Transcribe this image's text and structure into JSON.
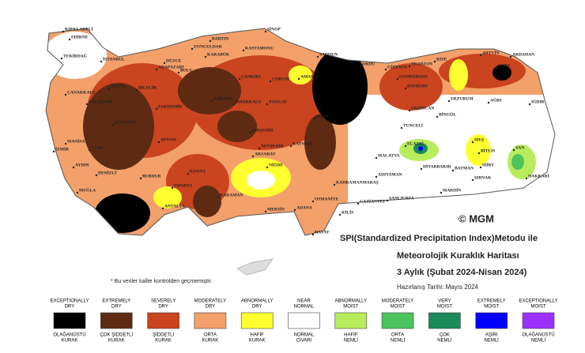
{
  "map": {
    "cities": [
      "KIRKLARELİ",
      "EDİRNE",
      "TEKİRDAĞ",
      "İSTANBUL",
      "ÇANAKKALE",
      "BALIKESİR",
      "BARTIN",
      "ZONGULDAK",
      "KARABÜK",
      "KASTAMONU",
      "SİNOP",
      "SAMSUN",
      "ORDU",
      "GİRESUN",
      "TRABZON",
      "RİZE",
      "ARTVİN",
      "ARDAHAN",
      "KARS",
      "IĞDIR",
      "AĞRI",
      "ERZURUM",
      "BAYBURT",
      "GÜMÜŞHANE",
      "ERZİNCAN",
      "TUNCELİ",
      "BİNGÖL",
      "MUŞ",
      "BİTLİS",
      "VAN",
      "SİİRT",
      "ŞIRNAK",
      "HAKKARİ",
      "BATMAN",
      "DİYARBAKIR",
      "MARDİN",
      "ŞANLIURFA",
      "ADIYAMAN",
      "MALATYA",
      "ELAZIĞ",
      "KAHRAMANMARAŞ",
      "OSMANİYE",
      "GAZİANTEP",
      "KİLİS",
      "HATAY",
      "ADANA",
      "MERSİN",
      "KARAMAN",
      "KONYA",
      "NİĞDE",
      "AKSARAY",
      "NEVŞEHİR",
      "KAYSERİ",
      "KIRŞEHİR",
      "YOZGAT",
      "ÇORUM",
      "ÇANKIRI",
      "AMASYA",
      "KIRIKKALE",
      "ANKARA",
      "BOLU",
      "DÜZCE",
      "ADAPAZARI",
      "BURSA",
      "BİLECİK",
      "ESKİŞEHİR",
      "KÜTAHYA",
      "MANİSA",
      "İZMİR",
      "AYDIN",
      "MUĞLA",
      "DENİZLİ",
      "UŞAK",
      "AFYON",
      "BURDUR",
      "ISPARTA",
      "ANTALYA",
      "SİVAS"
    ],
    "copyright": "© MGM",
    "title_lines": [
      "SPI(Standardized Precipitation Index)Metodu ile",
      "Meteorolojik Kuraklık Haritası",
      "3 Aylık (Şubat 2024-Nisan 2024)"
    ],
    "prepared": "Hazırlanış Tarihi: Mayıs 2024",
    "note": "* Bu veriler kalite kontrolden geçmemiştir.",
    "legend": [
      {
        "en": [
          "EXCEPTIONALLY",
          "DRY"
        ],
        "tr": [
          "OLAĞANÜSTÜ",
          "KURAK"
        ],
        "color": "#000000"
      },
      {
        "en": [
          "EXTREMELY",
          "DRY"
        ],
        "tr": [
          "ÇOK ŞİDDETLİ",
          "KURAK"
        ],
        "color": "#5e2a12"
      },
      {
        "en": [
          "SEVERELY",
          "DRY"
        ],
        "tr": [
          "ŞİDDETLİ",
          "KURAK"
        ],
        "color": "#c9441f"
      },
      {
        "en": [
          "MODERATELY",
          "DRY"
        ],
        "tr": [
          "ORTA",
          "KURAK"
        ],
        "color": "#f3a06a"
      },
      {
        "en": [
          "ABNORMALLY",
          "DRY"
        ],
        "tr": [
          "HAFİF",
          "KURAK"
        ],
        "color": "#ffff30"
      },
      {
        "en": [
          "NEAR",
          "NORMAL"
        ],
        "tr": [
          "NORMAL",
          "CİVARI"
        ],
        "color": "#ffffff"
      },
      {
        "en": [
          "ABNORMALLY",
          "MOIST"
        ],
        "tr": [
          "HAFİF",
          "NEMLİ"
        ],
        "color": "#b8ec5c"
      },
      {
        "en": [
          "MODERATELY",
          "MOIST"
        ],
        "tr": [
          "ORTA",
          "NEMLİ"
        ],
        "color": "#4cc45e"
      },
      {
        "en": [
          "VERY",
          "MOIST"
        ],
        "tr": [
          "ÇOK",
          "NEMLİ"
        ],
        "color": "#1a8a58"
      },
      {
        "en": [
          "EXTREMELY",
          "MOIST"
        ],
        "tr": [
          "AŞIRI",
          "NEMLİ"
        ],
        "color": "#0000ff"
      },
      {
        "en": [
          "EXCEPTIONALLY",
          "MOIST"
        ],
        "tr": [
          "OLAĞANÜSTÜ",
          "NEMLİ"
        ],
        "color": "#9b30ff"
      }
    ]
  }
}
